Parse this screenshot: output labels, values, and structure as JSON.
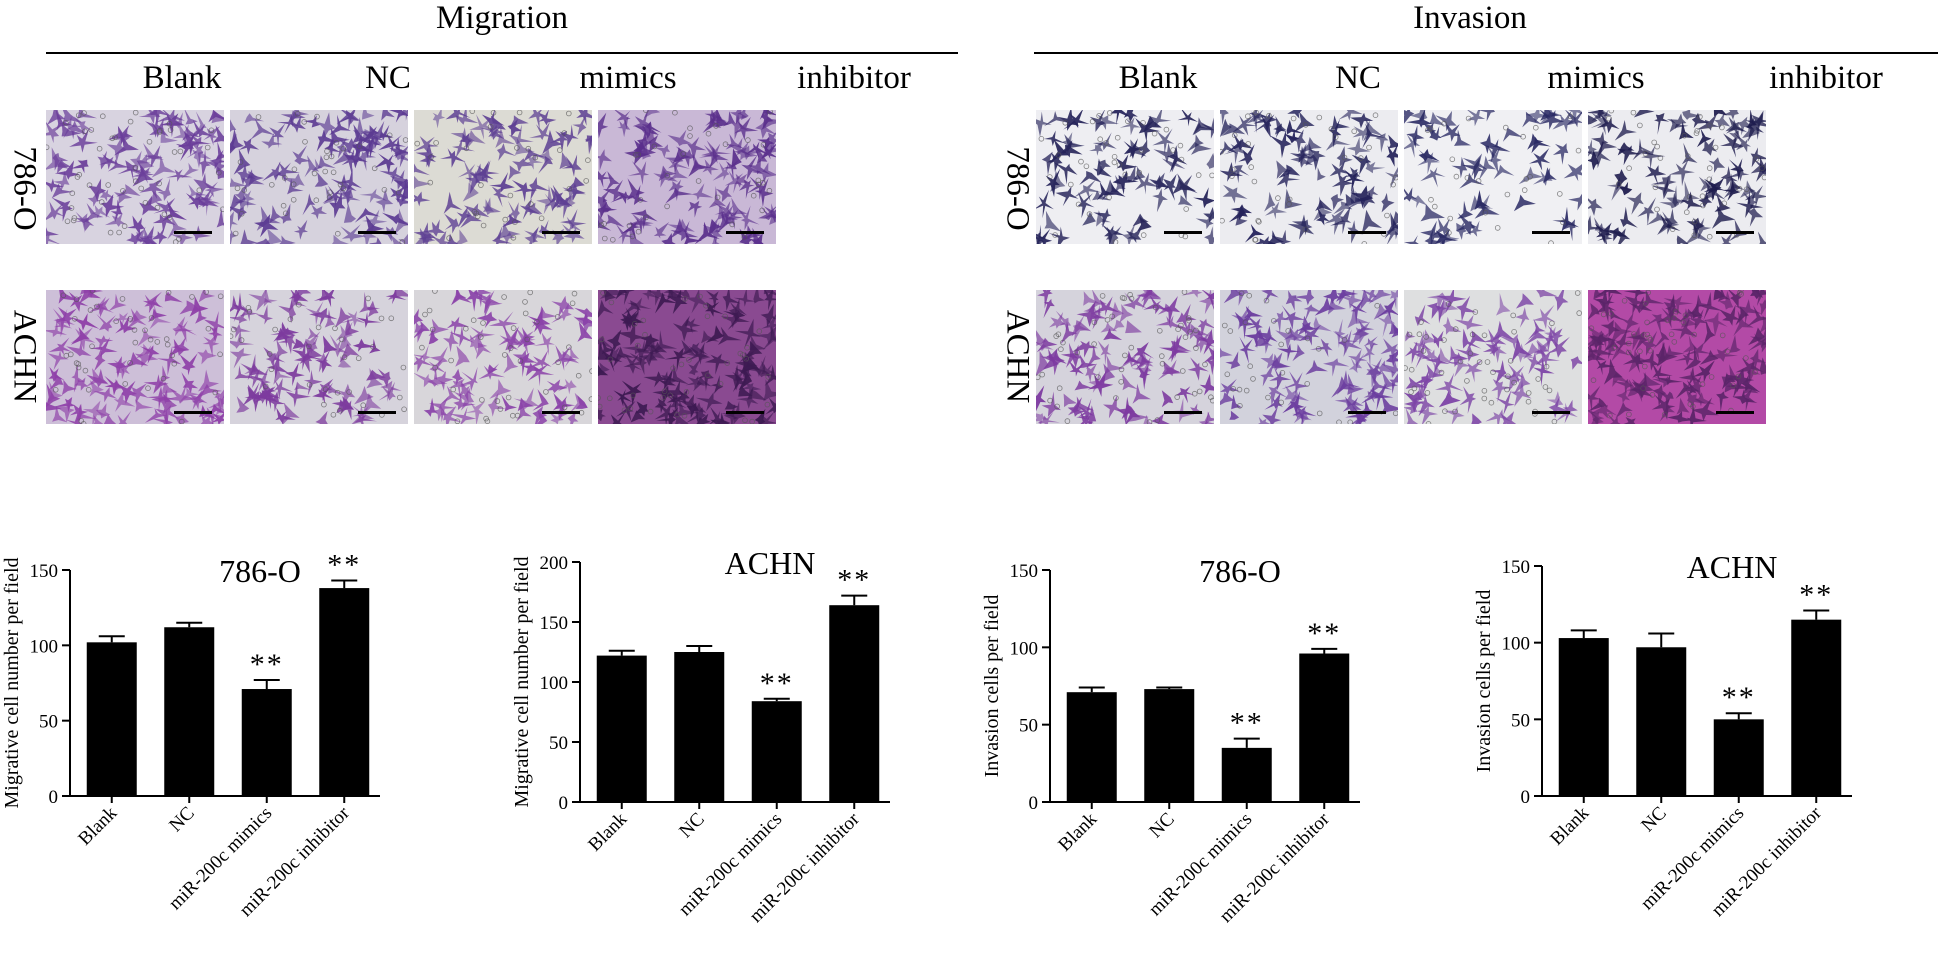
{
  "sections": [
    {
      "title": "Migration",
      "columns": [
        "Blank",
        "NC",
        "mimics",
        "inhibitor"
      ]
    },
    {
      "title": "Invasion",
      "columns": [
        "Blank",
        "NC",
        "mimics",
        "inhibitor"
      ]
    }
  ],
  "row_labels": [
    "786-O",
    "ACHN"
  ],
  "micrographs": {
    "migration_786": [
      {
        "density": 0.7,
        "base": "#d8d3e0",
        "cell": "#6a3d9a"
      },
      {
        "density": 0.75,
        "base": "#d6d2dd",
        "cell": "#5b3a92"
      },
      {
        "density": 0.55,
        "base": "#dcdbd4",
        "cell": "#5d3f93"
      },
      {
        "density": 0.85,
        "base": "#c9b8d6",
        "cell": "#5a2f8c"
      }
    ],
    "migration_achn": [
      {
        "density": 0.75,
        "base": "#cdbfd8",
        "cell": "#8e3fa8"
      },
      {
        "density": 0.6,
        "base": "#d6d3dc",
        "cell": "#7d3b9e"
      },
      {
        "density": 0.5,
        "base": "#d8d6da",
        "cell": "#8a42a9"
      },
      {
        "density": 0.95,
        "base": "#8a4a91",
        "cell": "#3d1a52"
      }
    ],
    "invasion_786": [
      {
        "density": 0.45,
        "base": "#eeeef2",
        "cell": "#26245a"
      },
      {
        "density": 0.5,
        "base": "#ececf0",
        "cell": "#24225a"
      },
      {
        "density": 0.25,
        "base": "#f0f0f3",
        "cell": "#2a2a64"
      },
      {
        "density": 0.6,
        "base": "#ececf0",
        "cell": "#1e1c4e"
      }
    ],
    "invasion_achn": [
      {
        "density": 0.65,
        "base": "#d5d3dc",
        "cell": "#7d3aa0"
      },
      {
        "density": 0.65,
        "base": "#d2d2dc",
        "cell": "#6a3b9e"
      },
      {
        "density": 0.45,
        "base": "#dedfe0",
        "cell": "#7d45a6"
      },
      {
        "density": 0.95,
        "base": "#b34aa6",
        "cell": "#5a2468"
      }
    ]
  },
  "chart_data": [
    {
      "type": "bar",
      "title": "786-O",
      "ylabel": "Migrative cell number per field",
      "categories": [
        "Blank",
        "NC",
        "miR-200c mimics",
        "miR-200c inhibitor"
      ],
      "values": [
        102,
        112,
        71,
        138
      ],
      "errors": [
        4,
        3,
        6,
        5
      ],
      "significance": [
        "",
        "",
        "**",
        "**"
      ],
      "ylim": [
        0,
        150
      ],
      "yticks": [
        0,
        50,
        100,
        150
      ],
      "color": "#000000"
    },
    {
      "type": "bar",
      "title": "ACHN",
      "ylabel": "Migrative cell number per field",
      "categories": [
        "Blank",
        "NC",
        "miR-200c mimics",
        "miR-200c inhibitor"
      ],
      "values": [
        122,
        125,
        84,
        164
      ],
      "errors": [
        4,
        5,
        2,
        8
      ],
      "significance": [
        "",
        "",
        "**",
        "**"
      ],
      "ylim": [
        0,
        200
      ],
      "yticks": [
        0,
        50,
        100,
        150,
        200
      ],
      "color": "#000000"
    },
    {
      "type": "bar",
      "title": "786-O",
      "ylabel": "Invasion cells per field",
      "categories": [
        "Blank",
        "NC",
        "miR-200c mimics",
        "miR-200c inhibitor"
      ],
      "values": [
        71,
        73,
        35,
        96
      ],
      "errors": [
        3,
        1,
        6,
        3
      ],
      "significance": [
        "",
        "",
        "**",
        "**"
      ],
      "ylim": [
        0,
        150
      ],
      "yticks": [
        0,
        50,
        100,
        150
      ],
      "color": "#000000"
    },
    {
      "type": "bar",
      "title": "ACHN",
      "ylabel": "Invasion cells per field",
      "categories": [
        "Blank",
        "NC",
        "miR-200c mimics",
        "miR-200c inhibitor"
      ],
      "values": [
        103,
        97,
        50,
        115
      ],
      "errors": [
        5,
        9,
        4,
        6
      ],
      "significance": [
        "",
        "",
        "**",
        "**"
      ],
      "ylim": [
        0,
        150
      ],
      "yticks": [
        0,
        50,
        100,
        150
      ],
      "color": "#000000"
    }
  ]
}
